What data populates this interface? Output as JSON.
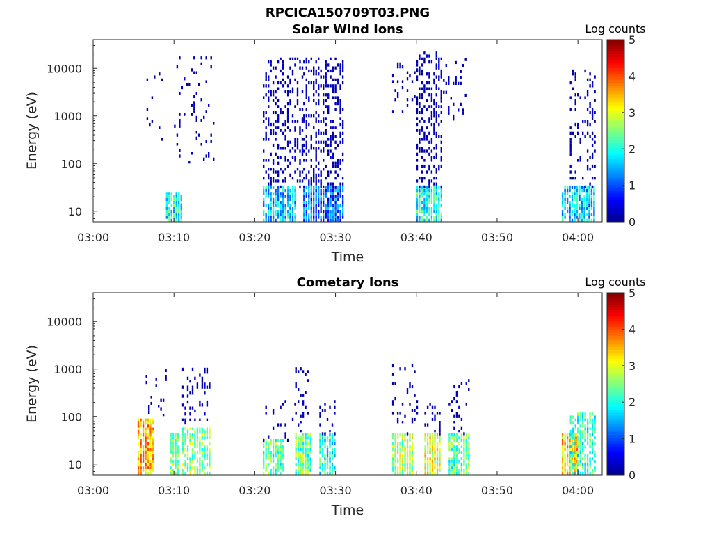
{
  "figure_title": "RPCICA150709T03.PNG",
  "colors": {
    "colormap": [
      "#00008f",
      "#0000ff",
      "#0080ff",
      "#00ffff",
      "#80ff80",
      "#ffff00",
      "#ff8000",
      "#ff0000",
      "#800000"
    ],
    "axis": "#262626",
    "background": "#ffffff"
  },
  "chart_data": [
    {
      "type": "heatmap",
      "title": "Solar Wind Ions",
      "xlabel": "Time",
      "ylabel": "Energy (eV)",
      "x_ticks": [
        "03:00",
        "03:10",
        "03:20",
        "03:30",
        "03:40",
        "03:50",
        "04:00"
      ],
      "y_ticks": [
        "10",
        "100",
        "1000",
        "10000"
      ],
      "ylim": [
        6,
        40000
      ],
      "xlim_minutes": [
        0,
        63
      ],
      "y_scale": "log",
      "colorbar": {
        "title": "Log counts",
        "ticks": [
          "0",
          "1",
          "2",
          "3",
          "4",
          "5"
        ],
        "range": [
          0,
          5
        ]
      },
      "clusters": [
        {
          "t_start": 6,
          "t_end": 9,
          "e_lo": 300,
          "e_hi": 12000,
          "density": 0.05,
          "low_level": 0
        },
        {
          "t_start": 9,
          "t_end": 11,
          "e_lo": 6,
          "e_hi": 25,
          "density": 0.9,
          "low_level": 1.8
        },
        {
          "t_start": 10,
          "t_end": 15,
          "e_lo": 100,
          "e_hi": 18000,
          "density": 0.08,
          "low_level": 0
        },
        {
          "t_start": 21,
          "t_end": 25,
          "e_lo": 6,
          "e_hi": 30,
          "density": 0.85,
          "low_level": 1.5
        },
        {
          "t_start": 21,
          "t_end": 26,
          "e_lo": 30,
          "e_hi": 15000,
          "density": 0.3,
          "low_level": 0
        },
        {
          "t_start": 26,
          "t_end": 31,
          "e_lo": 6,
          "e_hi": 30,
          "density": 0.9,
          "low_level": 0.9
        },
        {
          "t_start": 26,
          "t_end": 31,
          "e_lo": 30,
          "e_hi": 15000,
          "density": 0.35,
          "low_level": 0
        },
        {
          "t_start": 37,
          "t_end": 40,
          "e_lo": 1000,
          "e_hi": 15000,
          "density": 0.12,
          "low_level": 0
        },
        {
          "t_start": 40,
          "t_end": 43,
          "e_lo": 6,
          "e_hi": 30,
          "density": 0.9,
          "low_level": 1.8
        },
        {
          "t_start": 40,
          "t_end": 43,
          "e_lo": 30,
          "e_hi": 20000,
          "density": 0.4,
          "low_level": 0
        },
        {
          "t_start": 43,
          "t_end": 46,
          "e_lo": 800,
          "e_hi": 15000,
          "density": 0.12,
          "low_level": 0
        },
        {
          "t_start": 58,
          "t_end": 62,
          "e_lo": 6,
          "e_hi": 30,
          "density": 0.8,
          "low_level": 1.5
        },
        {
          "t_start": 59,
          "t_end": 62,
          "e_lo": 30,
          "e_hi": 10000,
          "density": 0.2,
          "low_level": 0
        }
      ]
    },
    {
      "type": "heatmap",
      "title": "Cometary Ions",
      "xlabel": "Time",
      "ylabel": "Energy (eV)",
      "x_ticks": [
        "03:00",
        "03:10",
        "03:20",
        "03:30",
        "03:40",
        "03:50",
        "04:00"
      ],
      "y_ticks": [
        "10",
        "100",
        "1000",
        "10000"
      ],
      "ylim": [
        6,
        40000
      ],
      "xlim_minutes": [
        0,
        63
      ],
      "y_scale": "log",
      "colorbar": {
        "title": "Log counts",
        "ticks": [
          "0",
          "1",
          "2",
          "3",
          "4",
          "5"
        ],
        "range": [
          0,
          5
        ]
      },
      "clusters": [
        {
          "t_start": 5.5,
          "t_end": 7.5,
          "e_lo": 6,
          "e_hi": 90,
          "density": 0.85,
          "low_level": 3.3
        },
        {
          "t_start": 6.5,
          "t_end": 9,
          "e_lo": 100,
          "e_hi": 1000,
          "density": 0.12,
          "low_level": 0
        },
        {
          "t_start": 9.5,
          "t_end": 10.5,
          "e_lo": 6,
          "e_hi": 40,
          "density": 0.9,
          "low_level": 2.5
        },
        {
          "t_start": 11,
          "t_end": 14.5,
          "e_lo": 6,
          "e_hi": 60,
          "density": 0.7,
          "low_level": 2.4
        },
        {
          "t_start": 11,
          "t_end": 14.5,
          "e_lo": 60,
          "e_hi": 1000,
          "density": 0.2,
          "low_level": 0
        },
        {
          "t_start": 21,
          "t_end": 23.5,
          "e_lo": 6,
          "e_hi": 30,
          "density": 0.8,
          "low_level": 2.2
        },
        {
          "t_start": 21,
          "t_end": 25,
          "e_lo": 30,
          "e_hi": 200,
          "density": 0.12,
          "low_level": 0
        },
        {
          "t_start": 25,
          "t_end": 27,
          "e_lo": 6,
          "e_hi": 40,
          "density": 0.9,
          "low_level": 2.2
        },
        {
          "t_start": 25,
          "t_end": 27,
          "e_lo": 40,
          "e_hi": 1000,
          "density": 0.15,
          "low_level": 0
        },
        {
          "t_start": 28,
          "t_end": 30,
          "e_lo": 6,
          "e_hi": 40,
          "density": 0.8,
          "low_level": 1.8
        },
        {
          "t_start": 28,
          "t_end": 30,
          "e_lo": 40,
          "e_hi": 200,
          "density": 0.2,
          "low_level": 0
        },
        {
          "t_start": 37,
          "t_end": 39.5,
          "e_lo": 6,
          "e_hi": 40,
          "density": 0.85,
          "low_level": 2.6
        },
        {
          "t_start": 37,
          "t_end": 40,
          "e_lo": 40,
          "e_hi": 1200,
          "density": 0.14,
          "low_level": 0
        },
        {
          "t_start": 41,
          "t_end": 43,
          "e_lo": 6,
          "e_hi": 40,
          "density": 0.9,
          "low_level": 2.8
        },
        {
          "t_start": 41,
          "t_end": 43,
          "e_lo": 40,
          "e_hi": 200,
          "density": 0.2,
          "low_level": 0
        },
        {
          "t_start": 44,
          "t_end": 46.5,
          "e_lo": 6,
          "e_hi": 40,
          "density": 0.8,
          "low_level": 2.2
        },
        {
          "t_start": 44,
          "t_end": 46.5,
          "e_lo": 40,
          "e_hi": 800,
          "density": 0.15,
          "low_level": 0
        },
        {
          "t_start": 58,
          "t_end": 60,
          "e_lo": 6,
          "e_hi": 40,
          "density": 0.9,
          "low_level": 3.2
        },
        {
          "t_start": 59,
          "t_end": 62,
          "e_lo": 6,
          "e_hi": 120,
          "density": 0.7,
          "low_level": 2.0
        }
      ]
    }
  ]
}
